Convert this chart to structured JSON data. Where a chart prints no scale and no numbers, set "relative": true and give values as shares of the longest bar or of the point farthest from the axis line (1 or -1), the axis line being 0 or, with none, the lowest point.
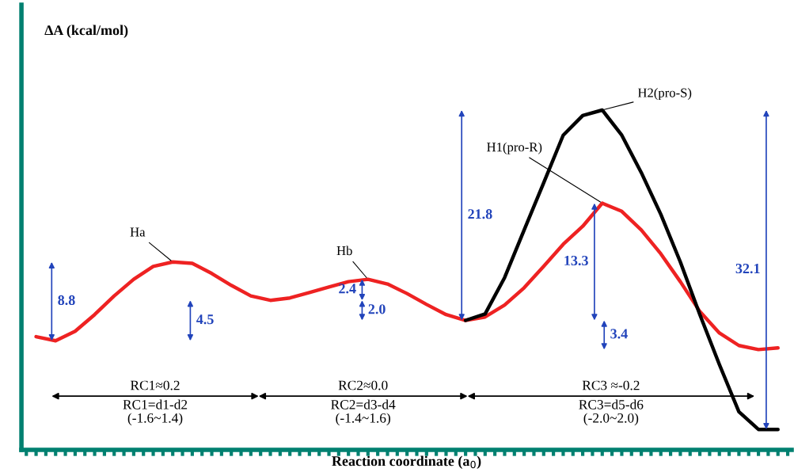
{
  "chart_data": {
    "type": "line",
    "relative": true,
    "xlabel": "Reaction coordinate (a$_{0}$)",
    "categories": [
      null,
      null,
      null,
      null,
      null,
      null,
      null,
      null,
      null,
      null,
      null,
      null,
      null,
      null,
      null,
      null,
      null,
      null,
      null,
      null,
      null,
      null,
      null,
      null,
      null,
      null,
      null,
      null,
      null,
      null,
      null,
      null,
      null,
      null,
      null,
      null,
      null,
      null,
      null
    ],
    "series": [
      {
        "color": "#ee2222",
        "values": [
          0.333,
          0.321,
          0.349,
          0.398,
          0.453,
          0.502,
          0.54,
          0.553,
          0.549,
          0.519,
          0.484,
          0.453,
          0.44,
          0.447,
          0.463,
          0.479,
          0.495,
          0.502,
          0.488,
          0.46,
          0.428,
          0.398,
          0.381,
          0.391,
          0.426,
          0.477,
          0.54,
          0.605,
          0.658,
          0.726,
          0.702,
          0.647,
          0.577,
          0.495,
          0.407,
          0.344,
          0.307,
          0.295,
          0.3
        ]
      },
      {
        "color": "#000000",
        "values": [
          null,
          null,
          null,
          null,
          null,
          null,
          null,
          null,
          null,
          null,
          null,
          null,
          null,
          null,
          null,
          null,
          null,
          null,
          null,
          null,
          null,
          null,
          0.381,
          0.4,
          0.507,
          0.647,
          0.786,
          0.926,
          0.984,
          1.0,
          0.926,
          0.816,
          0.693,
          0.553,
          0.398,
          0.251,
          0.112,
          0.06,
          0.06
        ]
      }
    ],
    "annotations": [
      "Ha",
      "Hb",
      "H2(pro-S)",
      "H1(pro-R)",
      "8.8",
      "4.5",
      "2.4",
      "2.0",
      "21.8",
      "13.3",
      "3.4",
      "32.1",
      "RC1≈0.2",
      "RC1=d1-d2\n(-1.6~1.4)",
      "RC2≈0.0",
      "RC2=d3-d4\n(-1.4~1.6)",
      "RC3 ≈-0.2",
      "RC3=d5-d6\n(-2.0~2.0)",
      "∆A (kcal/mol)"
    ],
    "grid": false
  }
}
